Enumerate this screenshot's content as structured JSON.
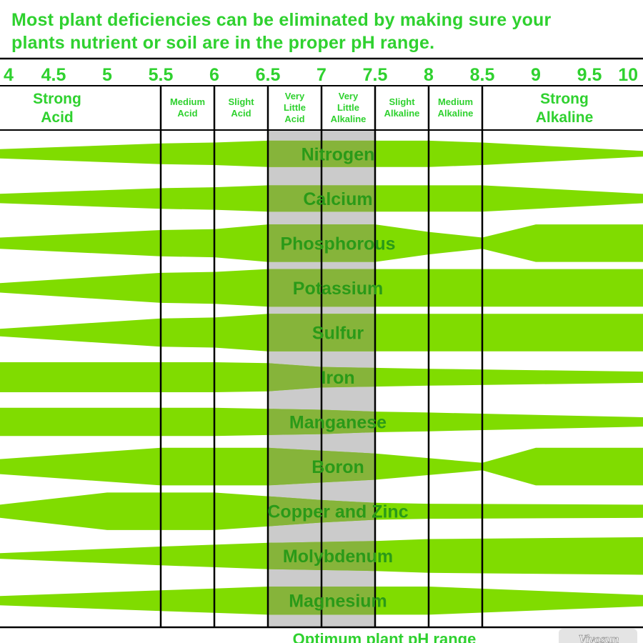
{
  "headline": {
    "line1": "Most plant deficiencies can be eliminated by making sure your",
    "line2": "plants nutrient or soil are in the proper pH range."
  },
  "ph_ticks": [
    "4",
    "4.5",
    "5",
    "5.5",
    "6",
    "6.5",
    "7",
    "7.5",
    "8",
    "8.5",
    "9",
    "9.5",
    "10"
  ],
  "categories": [
    {
      "lines": [
        "Strong",
        "Acid"
      ],
      "size": "big"
    },
    {
      "lines": [
        "Medium",
        "Acid"
      ],
      "size": "small"
    },
    {
      "lines": [
        "Slight",
        "Acid"
      ],
      "size": "small"
    },
    {
      "lines": [
        "Very",
        "Little",
        "Acid"
      ],
      "size": "small"
    },
    {
      "lines": [
        "Very",
        "Little",
        "Alkaline"
      ],
      "size": "small"
    },
    {
      "lines": [
        "Slight",
        "Alkaline"
      ],
      "size": "small"
    },
    {
      "lines": [
        "Medium",
        "Alkaline"
      ],
      "size": "small"
    },
    {
      "lines": [
        "Strong",
        "Alkaline"
      ],
      "size": "big"
    }
  ],
  "chart_data": {
    "type": "band",
    "x_axis": "pH",
    "x_range": [
      4,
      10
    ],
    "optimum_range": [
      6.5,
      7.5
    ],
    "optimum_label": "Optimum plant pH range",
    "availability_scale": "relative band thickness, 0 to 1",
    "nutrients": [
      {
        "name": "Nitrogen",
        "ph": [
          4,
          5.5,
          6,
          6.5,
          7.5,
          8,
          8.5,
          10
        ],
        "availability": [
          0.25,
          0.55,
          0.6,
          0.7,
          0.7,
          0.7,
          0.6,
          0.15
        ]
      },
      {
        "name": "Calcium",
        "ph": [
          4,
          5.5,
          6,
          6.5,
          7.5,
          8,
          8.5,
          10
        ],
        "availability": [
          0.25,
          0.55,
          0.6,
          0.7,
          0.7,
          0.7,
          0.7,
          0.25
        ]
      },
      {
        "name": "Phosphorous",
        "ph": [
          4,
          5.5,
          6,
          6.5,
          7.5,
          8,
          8.5,
          9,
          10
        ],
        "availability": [
          0.3,
          0.7,
          0.75,
          1.0,
          1.0,
          0.6,
          0.3,
          1.0,
          1.0
        ]
      },
      {
        "name": "Potassium",
        "ph": [
          4,
          5.5,
          6,
          6.5,
          7.5,
          8,
          10
        ],
        "availability": [
          0.25,
          0.8,
          0.85,
          1.0,
          1.0,
          1.0,
          1.0
        ]
      },
      {
        "name": "Sulfur",
        "ph": [
          4,
          5.5,
          6,
          6.5,
          7.5,
          8,
          10
        ],
        "availability": [
          0.2,
          0.75,
          0.8,
          1.0,
          1.0,
          1.0,
          1.0
        ]
      },
      {
        "name": "Iron",
        "ph": [
          4,
          5.5,
          6,
          6.5,
          7,
          7.5,
          8,
          10
        ],
        "availability": [
          0.8,
          0.8,
          0.8,
          0.75,
          0.55,
          0.5,
          0.45,
          0.3
        ]
      },
      {
        "name": "Manganese",
        "ph": [
          4,
          5.5,
          6,
          6.5,
          7,
          7.5,
          8,
          10
        ],
        "availability": [
          0.75,
          0.75,
          0.75,
          0.7,
          0.65,
          0.55,
          0.5,
          0.25
        ]
      },
      {
        "name": "Boron",
        "ph": [
          4,
          5.5,
          6,
          6.5,
          7,
          7.5,
          8,
          8.5,
          9,
          10
        ],
        "availability": [
          0.4,
          1.0,
          1.0,
          1.0,
          0.85,
          0.7,
          0.45,
          0.2,
          1.0,
          1.0
        ]
      },
      {
        "name": "Copper and Zinc",
        "ph": [
          4,
          5,
          5.5,
          6,
          6.5,
          7,
          7.5,
          8,
          10
        ],
        "availability": [
          0.35,
          1.0,
          1.0,
          1.0,
          0.8,
          0.6,
          0.45,
          0.4,
          0.35
        ]
      },
      {
        "name": "Molybdenum",
        "ph": [
          4,
          5.5,
          6,
          6.5,
          7.5,
          8,
          10
        ],
        "availability": [
          0.15,
          0.5,
          0.6,
          0.7,
          0.8,
          0.9,
          1.0
        ]
      },
      {
        "name": "Magnesium",
        "ph": [
          4,
          5.5,
          6,
          6.5,
          7.5,
          8,
          10
        ],
        "availability": [
          0.25,
          0.55,
          0.65,
          0.75,
          0.75,
          0.75,
          0.3
        ]
      }
    ]
  },
  "colors": {
    "band": "#80dc00",
    "band_in_optimum": "#86b43a",
    "optimum_shade": "#cbcbcb",
    "text_green": "#2fd12f",
    "nutrient_label": "#2a9a18",
    "grid": "#000000"
  },
  "watermark": "Vivosun"
}
